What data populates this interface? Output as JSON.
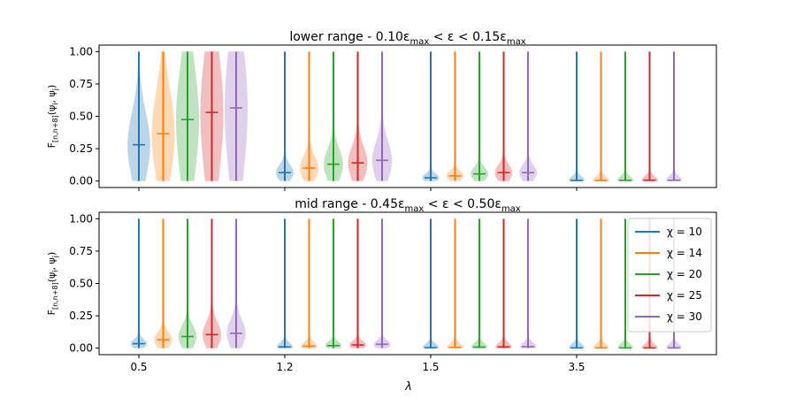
{
  "figure": {
    "xlabel": "λ",
    "xticks": [
      "0.5",
      "1.2",
      "1.5",
      "3.5"
    ]
  },
  "legend": [
    {
      "label": "χ = 10",
      "color": "#1f77b4"
    },
    {
      "label": "χ = 14",
      "color": "#ff7f0e"
    },
    {
      "label": "χ = 20",
      "color": "#2ca02c"
    },
    {
      "label": "χ = 25",
      "color": "#d62728"
    },
    {
      "label": "χ = 30",
      "color": "#9467bd"
    }
  ],
  "chart_data": [
    {
      "type": "violin",
      "title": "lower range - 0.10ε_max < ε < 0.15ε_max",
      "ylabel": "F_[n,n+8](ψ_i, ψ_j)",
      "ylim": [
        -0.05,
        1.05
      ],
      "yticks": [
        "0.00",
        "0.25",
        "0.50",
        "0.75",
        "1.00"
      ],
      "categories": [
        "0.5",
        "1.2",
        "1.5",
        "3.5"
      ],
      "series": [
        {
          "name": "χ = 10",
          "color": "#1f77b4",
          "median": [
            0.28,
            0.065,
            0.025,
            0.004
          ],
          "min": [
            0.0,
            0.0,
            0.0,
            0.0
          ],
          "max": [
            1.0,
            1.0,
            1.0,
            1.0
          ]
        },
        {
          "name": "χ = 14",
          "color": "#ff7f0e",
          "median": [
            0.365,
            0.1,
            0.04,
            0.005
          ],
          "min": [
            0.0,
            0.0,
            0.0,
            0.0
          ],
          "max": [
            1.0,
            1.0,
            1.0,
            1.0
          ]
        },
        {
          "name": "χ = 20",
          "color": "#2ca02c",
          "median": [
            0.475,
            0.13,
            0.055,
            0.005
          ],
          "min": [
            0.0,
            0.0,
            0.0,
            0.0
          ],
          "max": [
            1.0,
            1.0,
            1.0,
            1.0
          ]
        },
        {
          "name": "χ = 25",
          "color": "#d62728",
          "median": [
            0.53,
            0.14,
            0.065,
            0.006
          ],
          "min": [
            0.0,
            0.0,
            0.0,
            0.0
          ],
          "max": [
            1.0,
            1.0,
            1.0,
            1.0
          ]
        },
        {
          "name": "χ = 30",
          "color": "#9467bd",
          "median": [
            0.565,
            0.16,
            0.065,
            0.006
          ],
          "min": [
            0.0,
            0.0,
            0.0,
            0.0
          ],
          "max": [
            1.0,
            1.0,
            1.0,
            1.0
          ]
        }
      ]
    },
    {
      "type": "violin",
      "title": "mid range - 0.45ε_max < ε < 0.50ε_max",
      "ylabel": "F_[n,n+8](ψ_i, ψ_j)",
      "ylim": [
        -0.05,
        1.05
      ],
      "yticks": [
        "0.00",
        "0.25",
        "0.50",
        "0.75",
        "1.00"
      ],
      "categories": [
        "0.5",
        "1.2",
        "1.5",
        "3.5"
      ],
      "legend_position": "upper right",
      "series": [
        {
          "name": "χ = 10",
          "color": "#1f77b4",
          "median": [
            0.035,
            0.01,
            0.004,
            0.002
          ],
          "min": [
            0.0,
            0.0,
            0.0,
            0.0
          ],
          "max": [
            1.0,
            1.0,
            1.0,
            1.0
          ]
        },
        {
          "name": "χ = 14",
          "color": "#ff7f0e",
          "median": [
            0.065,
            0.015,
            0.006,
            0.002
          ],
          "min": [
            0.0,
            0.0,
            0.0,
            0.0
          ],
          "max": [
            1.0,
            1.0,
            1.0,
            1.0
          ]
        },
        {
          "name": "χ = 20",
          "color": "#2ca02c",
          "median": [
            0.09,
            0.02,
            0.008,
            0.002
          ],
          "min": [
            0.0,
            0.0,
            0.0,
            0.0
          ],
          "max": [
            1.0,
            1.0,
            1.0,
            1.0
          ]
        },
        {
          "name": "χ = 25",
          "color": "#d62728",
          "median": [
            0.105,
            0.025,
            0.01,
            0.002
          ],
          "min": [
            0.0,
            0.0,
            0.0,
            0.0
          ],
          "max": [
            1.0,
            1.0,
            1.0,
            1.0
          ]
        },
        {
          "name": "χ = 30",
          "color": "#9467bd",
          "median": [
            0.115,
            0.03,
            0.012,
            0.002
          ],
          "min": [
            0.0,
            0.0,
            0.0,
            0.0
          ],
          "max": [
            1.0,
            1.0,
            1.0,
            1.0
          ]
        }
      ]
    }
  ]
}
